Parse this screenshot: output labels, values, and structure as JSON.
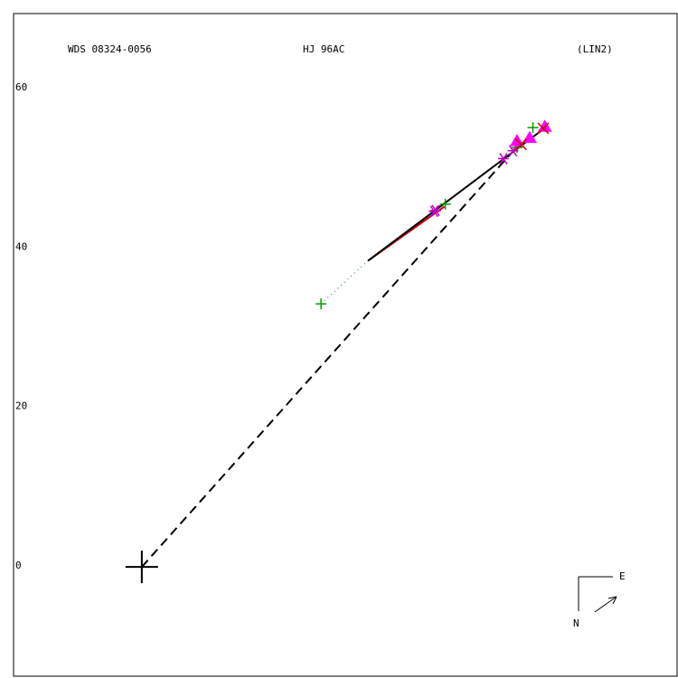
{
  "chart_data": {
    "type": "scatter",
    "title": "WDS 08324-0056",
    "subtitle": "HJ   96AC",
    "annotation": "(LIN2)",
    "compass": {
      "east": "E",
      "north": "N"
    },
    "xlim": [
      -16.1,
      67.2
    ],
    "ylim": [
      -13.7,
      69.4
    ],
    "yticks": [
      0,
      20,
      40,
      60
    ],
    "primary": {
      "x": 0,
      "y": 0,
      "color": "#000000",
      "marker": "bigplus"
    },
    "lines": [
      {
        "style": "dashed",
        "color": "#000000",
        "x": [
          0,
          46.3
        ],
        "y": [
          0,
          51.8
        ]
      },
      {
        "style": "dotted",
        "color": "#008000",
        "x": [
          22.5,
          28.4
        ],
        "y": [
          33.0,
          38.4
        ]
      },
      {
        "style": "solid",
        "color": "#cc0000",
        "x": [
          28.4,
          38.0
        ],
        "y": [
          38.4,
          45.2
        ]
      },
      {
        "style": "solid",
        "color": "#000000",
        "x": [
          28.4,
          50.8
        ],
        "y": [
          38.4,
          55.2
        ]
      }
    ],
    "series": [
      {
        "marker": "plus",
        "color": "#00a000",
        "x": [
          22.5,
          38.1,
          49.1,
          47.1
        ],
        "values": [
          33.0,
          45.5,
          55.1,
          52.6
        ]
      },
      {
        "marker": "asterisk",
        "color": "#c000c0",
        "x": [
          36.7,
          36.9,
          45.4,
          46.6
        ],
        "values": [
          44.6,
          44.7,
          51.2,
          52.2
        ]
      },
      {
        "marker": "triangle",
        "color": "#ff00ff",
        "x": [
          47.1,
          48.7,
          50.6
        ],
        "values": [
          53.4,
          53.8,
          55.2
        ]
      },
      {
        "marker": "x",
        "color": "#cc0000",
        "x": [
          47.6,
          50.4
        ],
        "values": [
          53.0,
          55.0
        ]
      }
    ]
  }
}
